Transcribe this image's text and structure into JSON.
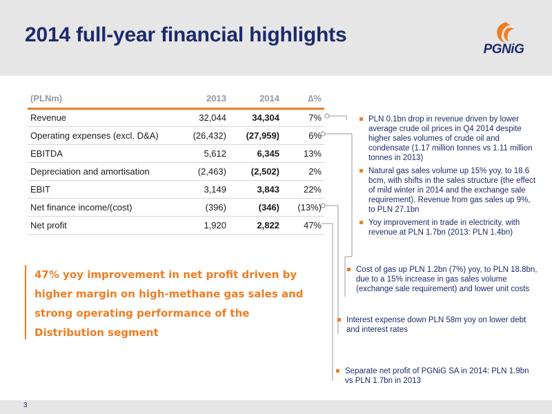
{
  "slide": {
    "title": "2014 full-year financial highlights",
    "logo_text": "PGNiG",
    "page_number": "3"
  },
  "table": {
    "headers": [
      "(PLNm)",
      "2013",
      "2014",
      "∆%"
    ],
    "rows": [
      {
        "label": "Revenue",
        "y2013": "32,044",
        "y2014": "34,304",
        "pct": "7%"
      },
      {
        "label": "Operating expenses (excl. D&A)",
        "y2013": "(26,432)",
        "y2014": "(27,959)",
        "pct": "6%"
      },
      {
        "label": "EBITDA",
        "y2013": "5,612",
        "y2014": "6,345",
        "pct": "13%"
      },
      {
        "label": "Depreciation and amortisation",
        "y2013": "(2,463)",
        "y2014": "(2,502)",
        "pct": "2%"
      },
      {
        "label": "EBIT",
        "y2013": "3,149",
        "y2014": "3,843",
        "pct": "22%"
      },
      {
        "label": "Net finance income/(cost)",
        "y2013": "(396)",
        "y2014": "(346)",
        "pct": "(13%)"
      },
      {
        "label": "Net profit",
        "y2013": "1,920",
        "y2014": "2,822",
        "pct": "47%"
      }
    ]
  },
  "callout": {
    "text": "47% yoy improvement in net profit driven by higher margin on high-methane gas sales and strong operating performance of the Distribution segment"
  },
  "notes": {
    "revenue": [
      "PLN 0.1bn drop in revenue driven by lower average crude oil prices in Q4 2014 despite higher sales volumes of crude oil and condensate (1.17 million tonnes vs 1.11 million tonnes in 2013)",
      "Natural gas sales volume up 15% yoy, to 18.6 bcm, with shifts in the sales structure (the effect of mild winter in 2014 and the exchange sale requirement). Revenue from gas sales up 9%, to PLN 27.1bn",
      "Yoy improvement in trade in electricity, with revenue at PLN 1.7bn (2013: PLN 1.4bn)"
    ],
    "opex": [
      "Cost of gas up PLN 1.2bn (7%) yoy, to PLN 18.8bn, due to a 15% increase in gas sales volume (exchange sale requirement) and lower unit costs"
    ],
    "finance": [
      "Interest expense down PLN 58m yoy on lower debt and interest rates"
    ],
    "net_profit": [
      "Separate net profit of PGNiG SA in 2014: PLN 1.9bn vs PLN 1.7bn in 2013"
    ]
  },
  "colors": {
    "brand_navy": "#1c2a6b",
    "accent_orange": "#ef7d22",
    "header_gray": "#e6e6e6"
  }
}
